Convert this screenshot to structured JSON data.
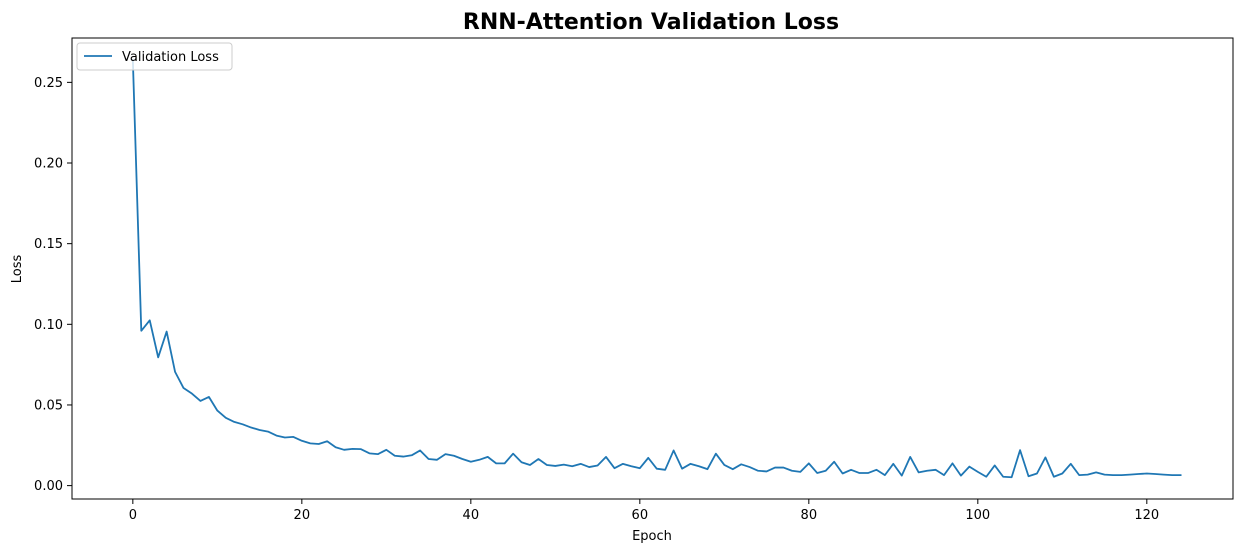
{
  "chart_data": {
    "type": "line",
    "title": "RNN-Attention Validation Loss",
    "xlabel": "Epoch",
    "ylabel": "Loss",
    "xlim": [
      -7.2,
      130.2
    ],
    "ylim": [
      -0.0083,
      0.2775
    ],
    "x_ticks": [
      0,
      20,
      40,
      60,
      80,
      100,
      120
    ],
    "x_tick_labels": [
      "0",
      "20",
      "40",
      "60",
      "80",
      "100",
      "120"
    ],
    "y_ticks": [
      0.0,
      0.05,
      0.1,
      0.15,
      0.2,
      0.25
    ],
    "y_tick_labels": [
      "0.00",
      "0.05",
      "0.10",
      "0.15",
      "0.20",
      "0.25"
    ],
    "grid": false,
    "legend": {
      "position": "upper-left",
      "entries": [
        "Validation Loss"
      ]
    },
    "series": [
      {
        "name": "Validation Loss",
        "color": "#1f77b4",
        "x_start": 0,
        "values": [
          0.264,
          0.096,
          0.1025,
          0.0795,
          0.0955,
          0.0705,
          0.0605,
          0.057,
          0.0525,
          0.055,
          0.0465,
          0.042,
          0.0395,
          0.038,
          0.036,
          0.0345,
          0.0335,
          0.031,
          0.0298,
          0.0302,
          0.0278,
          0.0262,
          0.0258,
          0.0275,
          0.0238,
          0.0222,
          0.0228,
          0.0226,
          0.02,
          0.0195,
          0.0222,
          0.0185,
          0.018,
          0.0188,
          0.0218,
          0.0165,
          0.016,
          0.0195,
          0.0185,
          0.0165,
          0.0148,
          0.016,
          0.0178,
          0.0138,
          0.0138,
          0.0198,
          0.0145,
          0.0128,
          0.0165,
          0.0128,
          0.0122,
          0.013,
          0.012,
          0.0135,
          0.0115,
          0.0125,
          0.0178,
          0.0108,
          0.0135,
          0.012,
          0.0108,
          0.0172,
          0.0105,
          0.0098,
          0.0218,
          0.0105,
          0.0135,
          0.012,
          0.0102,
          0.0198,
          0.0128,
          0.0102,
          0.0132,
          0.0115,
          0.0092,
          0.0088,
          0.0112,
          0.0112,
          0.0092,
          0.0085,
          0.0138,
          0.0078,
          0.0092,
          0.0148,
          0.0075,
          0.0098,
          0.0078,
          0.0078,
          0.0098,
          0.0065,
          0.0135,
          0.0062,
          0.0178,
          0.0082,
          0.0092,
          0.0098,
          0.0065,
          0.0138,
          0.0062,
          0.0118,
          0.0085,
          0.0055,
          0.0125,
          0.0055,
          0.0052,
          0.022,
          0.0058,
          0.0075,
          0.0175,
          0.0055,
          0.0075,
          0.0135,
          0.0065,
          0.0068,
          0.0082,
          0.0068,
          0.0065,
          0.0065,
          0.0068,
          0.0072,
          0.0075,
          0.0072,
          0.0068,
          0.0065,
          0.0065
        ]
      }
    ]
  }
}
